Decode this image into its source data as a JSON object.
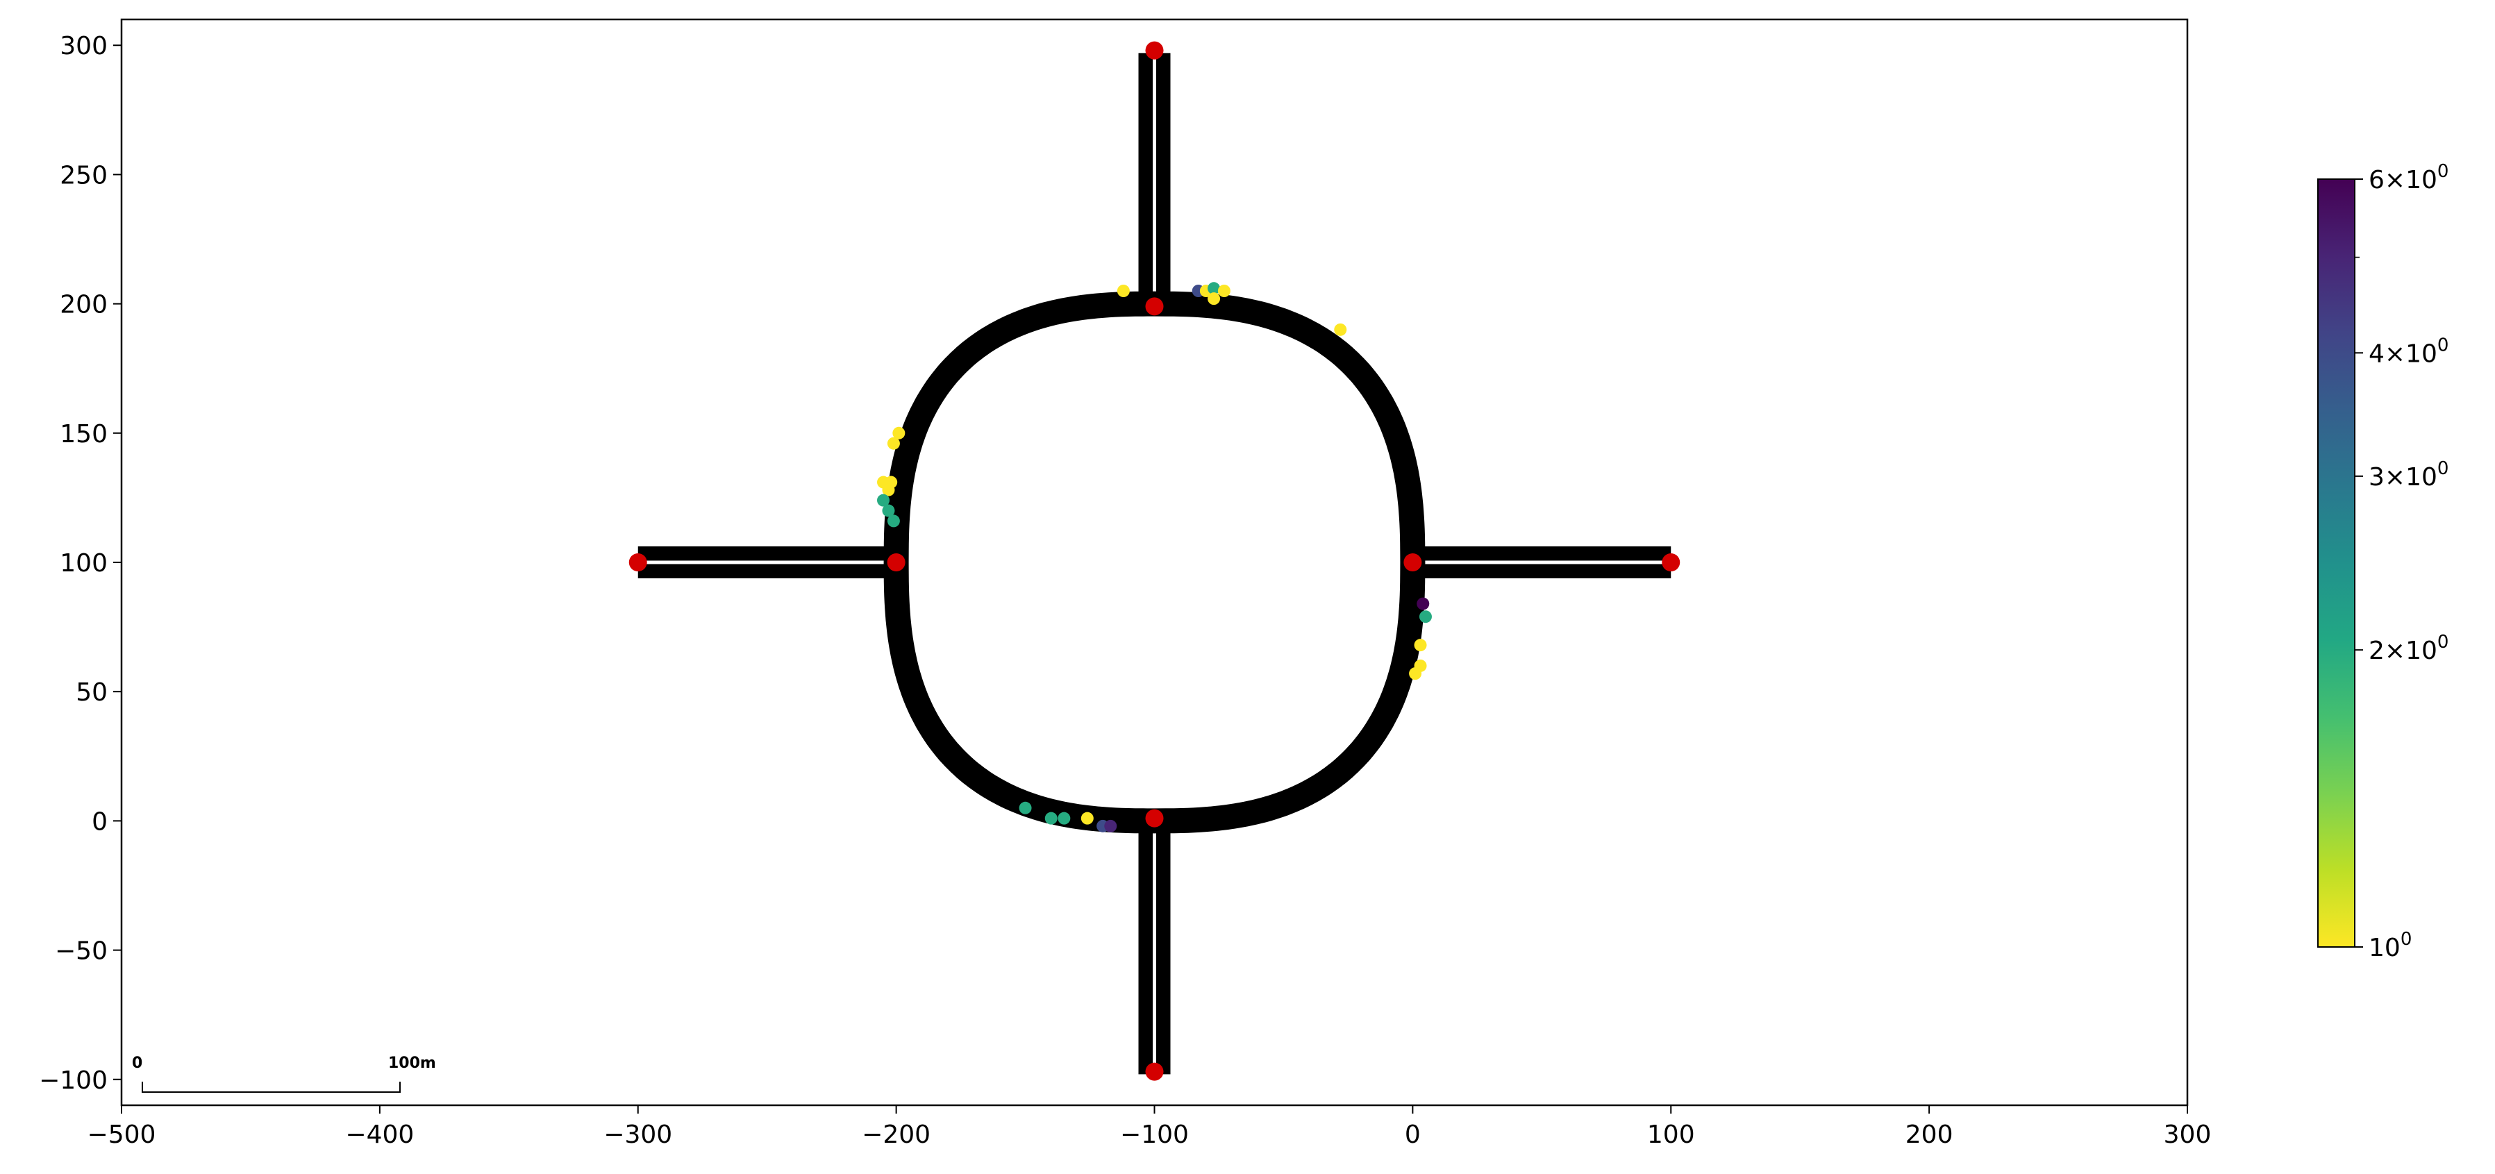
{
  "chart_data": {
    "type": "scatter",
    "xlim": [
      -500,
      300
    ],
    "ylim": [
      -110,
      310
    ],
    "x_ticks": [
      -500,
      -400,
      -300,
      -200,
      -100,
      0,
      100,
      200,
      300
    ],
    "y_ticks": [
      -100,
      -50,
      0,
      50,
      100,
      150,
      200,
      250,
      300
    ],
    "x_tick_labels": [
      "−500",
      "−400",
      "−300",
      "−200",
      "−100",
      "0",
      "100",
      "200",
      "300"
    ],
    "y_tick_labels": [
      "−100",
      "−50",
      "0",
      "50",
      "100",
      "150",
      "200",
      "250",
      "300"
    ],
    "grid": false,
    "roundabout": {
      "center": [
        -100,
        100
      ],
      "radius": 100,
      "shape_exponent": 2.6
    },
    "approach_roads": [
      {
        "from": [
          -300,
          100
        ],
        "to": [
          -200,
          100
        ]
      },
      {
        "from": [
          0,
          100
        ],
        "to": [
          100,
          100
        ]
      },
      {
        "from": [
          -100,
          200
        ],
        "to": [
          -100,
          297
        ]
      },
      {
        "from": [
          -100,
          0
        ],
        "to": [
          -100,
          -98
        ]
      }
    ],
    "nodes": [
      {
        "x": -300,
        "y": 100
      },
      {
        "x": -200,
        "y": 100
      },
      {
        "x": 0,
        "y": 100
      },
      {
        "x": 100,
        "y": 100
      },
      {
        "x": -100,
        "y": 298
      },
      {
        "x": -100,
        "y": 199
      },
      {
        "x": -100,
        "y": 1
      },
      {
        "x": -100,
        "y": -97
      }
    ],
    "node_color": "#d40000",
    "road_color": "#000000",
    "points": [
      {
        "x": -112,
        "y": 205,
        "v": 1
      },
      {
        "x": -83,
        "y": 205,
        "v": 4
      },
      {
        "x": -80,
        "y": 205,
        "v": 1
      },
      {
        "x": -77,
        "y": 206,
        "v": 2
      },
      {
        "x": -73,
        "y": 205,
        "v": 1
      },
      {
        "x": -77,
        "y": 202,
        "v": 1
      },
      {
        "x": -28,
        "y": 190,
        "v": 1
      },
      {
        "x": -199,
        "y": 150,
        "v": 1
      },
      {
        "x": -201,
        "y": 146,
        "v": 1
      },
      {
        "x": -205,
        "y": 131,
        "v": 1
      },
      {
        "x": -202,
        "y": 131,
        "v": 1
      },
      {
        "x": -203,
        "y": 128,
        "v": 1
      },
      {
        "x": -205,
        "y": 124,
        "v": 2
      },
      {
        "x": -203,
        "y": 120,
        "v": 2
      },
      {
        "x": -201,
        "y": 116,
        "v": 2
      },
      {
        "x": 4,
        "y": 84,
        "v": 6
      },
      {
        "x": 5,
        "y": 79,
        "v": 2
      },
      {
        "x": 3,
        "y": 68,
        "v": 1
      },
      {
        "x": 3,
        "y": 60,
        "v": 1
      },
      {
        "x": 1,
        "y": 57,
        "v": 1
      },
      {
        "x": -150,
        "y": 5,
        "v": 2
      },
      {
        "x": -140,
        "y": 1,
        "v": 2
      },
      {
        "x": -135,
        "y": 1,
        "v": 2
      },
      {
        "x": -126,
        "y": 1,
        "v": 1
      },
      {
        "x": -120,
        "y": -2,
        "v": 4
      },
      {
        "x": -117,
        "y": -2,
        "v": 5
      }
    ],
    "colorbar": {
      "colormap": "viridis_r",
      "scale": "log",
      "range": [
        1,
        6
      ],
      "ticks": [
        {
          "value": 1,
          "base": "10",
          "exp": "0",
          "prefix": ""
        },
        {
          "value": 2,
          "base": "10",
          "exp": "0",
          "prefix": "2×"
        },
        {
          "value": 3,
          "base": "10",
          "exp": "0",
          "prefix": "3×"
        },
        {
          "value": 4,
          "base": "10",
          "exp": "0",
          "prefix": "4×"
        },
        {
          "value": 6,
          "base": "10",
          "exp": "0",
          "prefix": "6×"
        }
      ],
      "minor_ticks": [
        5
      ]
    },
    "scalebar": {
      "start_label": "0",
      "end_label": "100m",
      "length": 100
    }
  }
}
